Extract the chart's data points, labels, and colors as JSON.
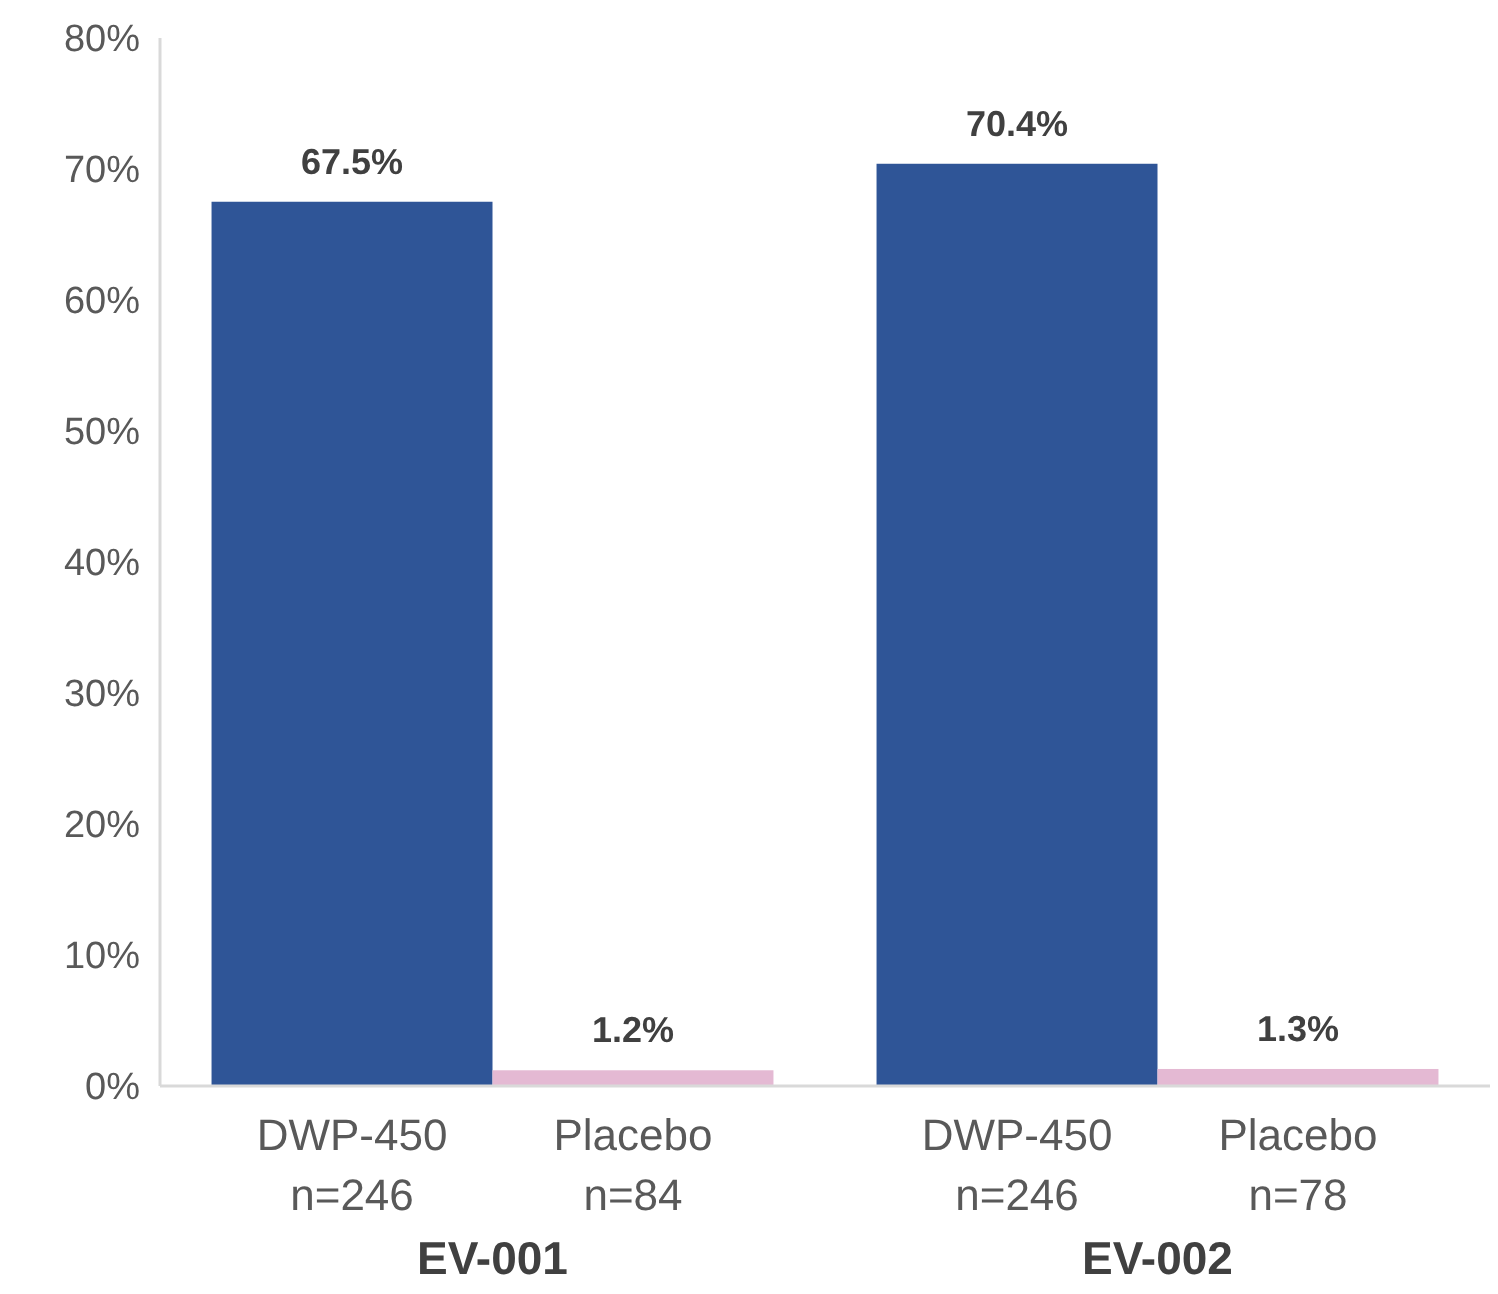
{
  "chart_data": {
    "type": "bar",
    "categories": [
      "DWP-450\nn=246",
      "Placebo\nn=84",
      "DWP-450\nn=246",
      "Placebo\nn=78"
    ],
    "values": [
      67.5,
      1.2,
      70.4,
      1.3
    ],
    "colors": [
      "#2f5597",
      "#e4b9d3",
      "#2f5597",
      "#e4b9d3"
    ],
    "value_labels": [
      "67.5%",
      "1.2%",
      "70.4%",
      "1.3%"
    ],
    "annotations": [
      "EV-001",
      "EV-002"
    ],
    "ylim": [
      0,
      80
    ],
    "yticks": [
      {
        "value": 0,
        "label": "0%"
      },
      {
        "value": 10,
        "label": "10%"
      },
      {
        "value": 20,
        "label": "20%"
      },
      {
        "value": 30,
        "label": "30%"
      },
      {
        "value": 40,
        "label": "40%"
      },
      {
        "value": 50,
        "label": "50%"
      },
      {
        "value": 60,
        "label": "60%"
      },
      {
        "value": 70,
        "label": "70%"
      },
      {
        "value": 80,
        "label": "80%"
      }
    ],
    "grid": false
  }
}
